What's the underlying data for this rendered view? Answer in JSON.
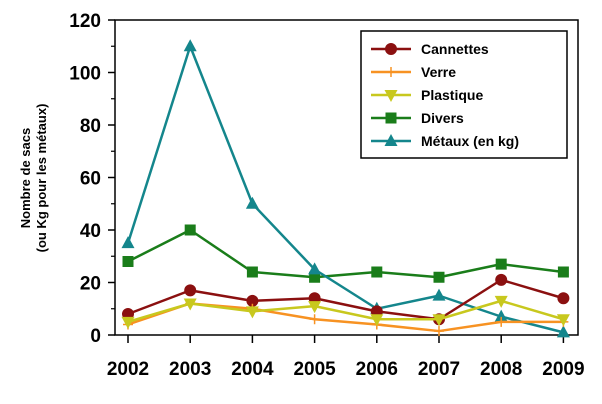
{
  "chart_data": {
    "type": "line",
    "title": "",
    "xlabel": "",
    "ylabel_lines": [
      "Nombre de sacs",
      "(ou Kg pour les métaux)"
    ],
    "x": [
      "2002",
      "2003",
      "2004",
      "2005",
      "2006",
      "2007",
      "2008",
      "2009"
    ],
    "ylim": [
      0,
      120
    ],
    "yticks": [
      "0",
      "20",
      "40",
      "60",
      "80",
      "100",
      "120"
    ],
    "grid": false,
    "legend_position": "top-right",
    "series": [
      {
        "name": "Cannettes",
        "color": "#8b1010",
        "marker": "circle",
        "values": [
          8,
          17,
          13,
          14,
          9,
          6,
          21,
          14
        ]
      },
      {
        "name": "Verre",
        "color": "#f79222",
        "marker": "plus",
        "values": [
          4,
          12,
          10,
          6,
          4,
          1.5,
          5,
          5
        ]
      },
      {
        "name": "Plastique",
        "color": "#c8c81e",
        "marker": "triangle-down",
        "values": [
          5,
          12,
          9,
          11,
          6,
          6,
          13,
          6
        ]
      },
      {
        "name": "Divers",
        "color": "#1a7d1a",
        "marker": "square",
        "values": [
          28,
          40,
          24,
          22,
          24,
          22,
          27,
          24
        ]
      },
      {
        "name": "Métaux (en kg)",
        "color": "#14868c",
        "marker": "triangle-up",
        "values": [
          35,
          110,
          50,
          25,
          10,
          15,
          7,
          1
        ]
      }
    ]
  }
}
